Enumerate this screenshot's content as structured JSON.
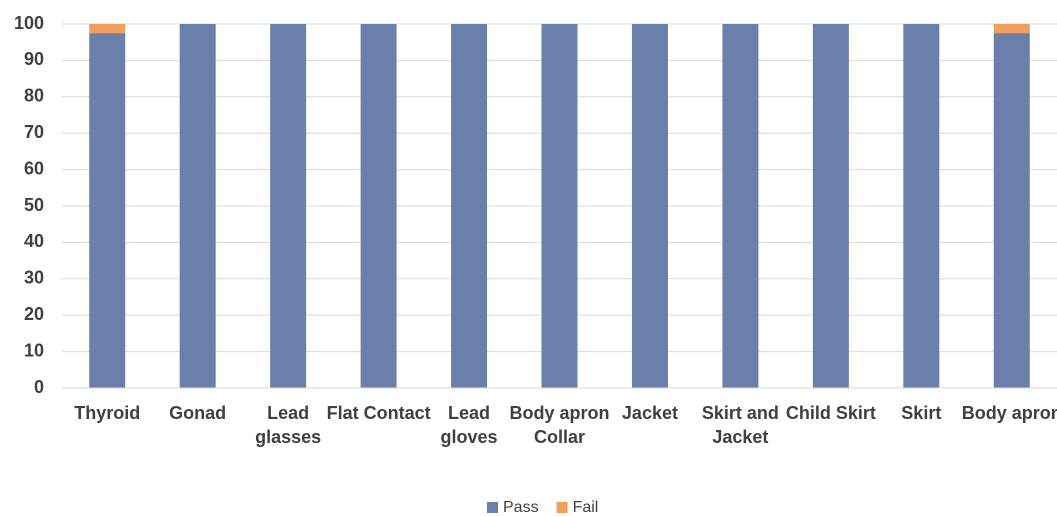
{
  "chart_data": {
    "type": "stacked_bar",
    "categories": [
      "Thyroid",
      "Gonad",
      "Lead glasses",
      "Flat Contact",
      "Lead gloves",
      "Body apron Collar",
      "Jacket",
      "Skirt and Jacket",
      "Child Skirt",
      "Skirt",
      "Body apron"
    ],
    "series": [
      {
        "name": "Pass",
        "color": "#6a80aa",
        "values": [
          97.5,
          100,
          100,
          100,
          100,
          100,
          100,
          100,
          100,
          100,
          97.5
        ]
      },
      {
        "name": "Fail",
        "color": "#f0a05a",
        "values": [
          2.5,
          0,
          0,
          0,
          0,
          0,
          0,
          0,
          0,
          0,
          2.5
        ]
      }
    ],
    "ylim": [
      0,
      100
    ],
    "yticks": [
      0,
      10,
      20,
      30,
      40,
      50,
      60,
      70,
      80,
      90,
      100
    ],
    "grid": true,
    "legend": "bottom"
  }
}
